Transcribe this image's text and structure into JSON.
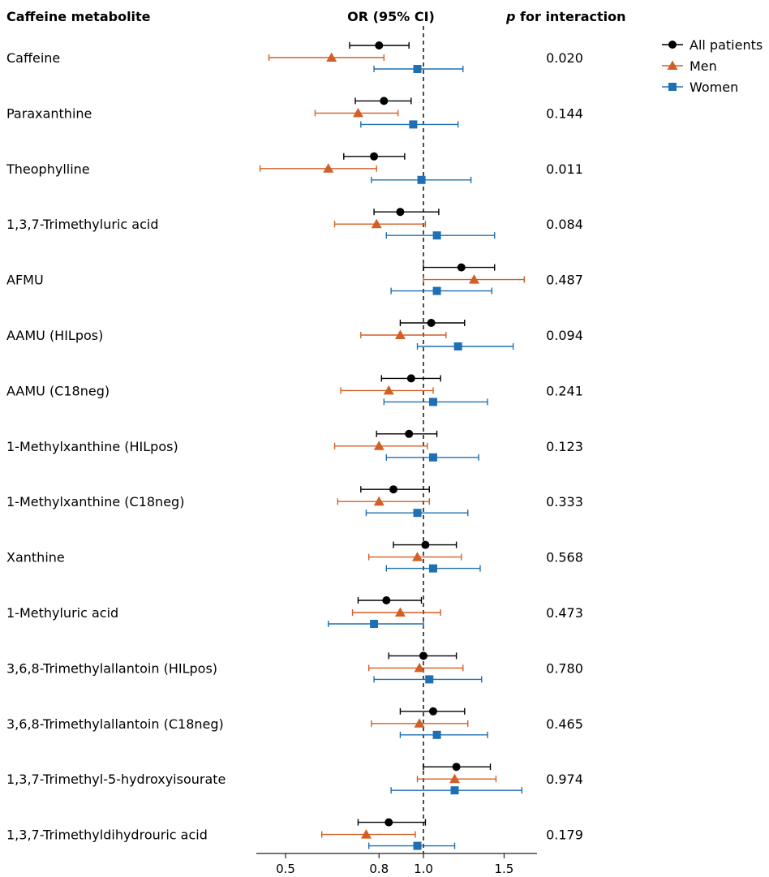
{
  "chart_data": {
    "type": "forest",
    "headers": {
      "metabolite": "Caffeine metabolite",
      "or": "OR (95% CI)",
      "p_italic": "p",
      "p_rest": " for interaction"
    },
    "x_scale": "log",
    "xlim": [
      0.4,
      1.7
    ],
    "ticks": [
      0.5,
      0.8,
      1.0,
      1.5
    ],
    "tick_labels": [
      "0.5",
      "0.8",
      "1.0",
      "1.5"
    ],
    "reference_line": 1.0,
    "series": [
      {
        "name": "All patients",
        "color": "#000000",
        "marker": "circle"
      },
      {
        "name": "Men",
        "color": "#D35F26",
        "marker": "triangle"
      },
      {
        "name": "Women",
        "color": "#1F6FB4",
        "marker": "square"
      }
    ],
    "rows": [
      {
        "label": "Caffeine",
        "p": "0.020",
        "est": [
          [
            0.8,
            0.69,
            0.93
          ],
          [
            0.63,
            0.46,
            0.82
          ],
          [
            0.97,
            0.78,
            1.22
          ]
        ]
      },
      {
        "label": "Paraxanthine",
        "p": "0.144",
        "est": [
          [
            0.82,
            0.71,
            0.94
          ],
          [
            0.72,
            0.58,
            0.88
          ],
          [
            0.95,
            0.73,
            1.19
          ]
        ]
      },
      {
        "label": "Theophylline",
        "p": "0.011",
        "est": [
          [
            0.78,
            0.67,
            0.91
          ],
          [
            0.62,
            0.44,
            0.79
          ],
          [
            0.99,
            0.77,
            1.27
          ]
        ]
      },
      {
        "label": "1,3,7-Trimethyluric acid",
        "p": "0.084",
        "est": [
          [
            0.89,
            0.78,
            1.08
          ],
          [
            0.79,
            0.64,
            1.01
          ],
          [
            1.07,
            0.83,
            1.43
          ]
        ]
      },
      {
        "label": "AFMU",
        "p": "0.487",
        "est": [
          [
            1.21,
            1.0,
            1.43
          ],
          [
            1.29,
            1.0,
            1.66
          ],
          [
            1.07,
            0.85,
            1.41
          ]
        ]
      },
      {
        "label": "AAMU (HILpos)",
        "p": "0.094",
        "est": [
          [
            1.04,
            0.89,
            1.23
          ],
          [
            0.89,
            0.73,
            1.12
          ],
          [
            1.19,
            0.97,
            1.57
          ]
        ]
      },
      {
        "label": "AAMU (C18neg)",
        "p": "0.241",
        "est": [
          [
            0.94,
            0.81,
            1.09
          ],
          [
            0.84,
            0.66,
            1.05
          ],
          [
            1.05,
            0.82,
            1.38
          ]
        ]
      },
      {
        "label": "1-Methylxanthine (HILpos)",
        "p": "0.123",
        "est": [
          [
            0.93,
            0.79,
            1.07
          ],
          [
            0.8,
            0.64,
            1.02
          ],
          [
            1.05,
            0.83,
            1.32
          ]
        ]
      },
      {
        "label": "1-Methylxanthine (C18neg)",
        "p": "0.333",
        "est": [
          [
            0.86,
            0.73,
            1.03
          ],
          [
            0.8,
            0.65,
            1.03
          ],
          [
            0.97,
            0.75,
            1.25
          ]
        ]
      },
      {
        "label": "Xanthine",
        "p": "0.568",
        "est": [
          [
            1.01,
            0.86,
            1.18
          ],
          [
            0.97,
            0.76,
            1.21
          ],
          [
            1.05,
            0.83,
            1.33
          ]
        ]
      },
      {
        "label": "1-Methyluric acid",
        "p": "0.473",
        "est": [
          [
            0.83,
            0.72,
            0.99
          ],
          [
            0.89,
            0.7,
            1.09
          ],
          [
            0.78,
            0.62,
            1.0
          ]
        ]
      },
      {
        "label": "3,6,8-Trimethylallantoin (HILpos)",
        "p": "0.780",
        "est": [
          [
            1.0,
            0.84,
            1.18
          ],
          [
            0.98,
            0.76,
            1.22
          ],
          [
            1.03,
            0.78,
            1.34
          ]
        ]
      },
      {
        "label": "3,6,8-Trimethylallantoin (C18neg)",
        "p": "0.465",
        "est": [
          [
            1.05,
            0.89,
            1.23
          ],
          [
            0.98,
            0.77,
            1.25
          ],
          [
            1.07,
            0.89,
            1.38
          ]
        ]
      },
      {
        "label": "1,3,7-Trimethyl-5-hydroxyisourate",
        "p": "0.974",
        "est": [
          [
            1.18,
            1.0,
            1.4
          ],
          [
            1.17,
            0.97,
            1.44
          ],
          [
            1.17,
            0.85,
            1.64
          ]
        ]
      },
      {
        "label": "1,3,7-Trimethyldihydrouric acid",
        "p": "0.179",
        "est": [
          [
            0.84,
            0.72,
            1.01
          ],
          [
            0.75,
            0.6,
            0.96
          ],
          [
            0.97,
            0.76,
            1.17
          ]
        ]
      }
    ]
  }
}
